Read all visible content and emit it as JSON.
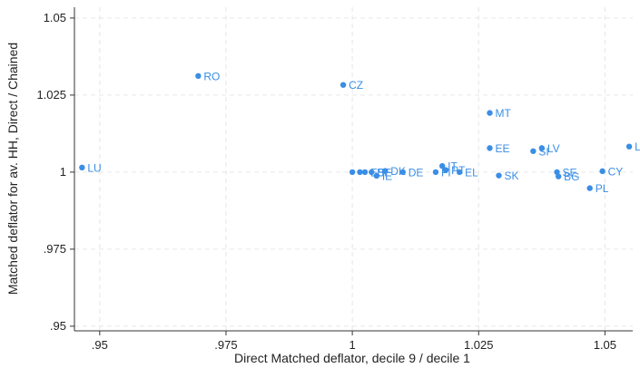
{
  "chart_data": {
    "type": "scatter",
    "xlabel": "Direct Matched deflator, decile 9 / decile 1",
    "ylabel": "Matched deflator for av. HH, Direct / Chained",
    "xlim": [
      0.945,
      1.0555
    ],
    "ylim": [
      0.9485,
      1.0535
    ],
    "xticks": [
      0.95,
      0.975,
      1,
      1.025,
      1.05
    ],
    "xtick_labels": [
      ".95",
      ".975",
      "1",
      "1.025",
      "1.05"
    ],
    "yticks": [
      0.95,
      0.975,
      1,
      1.025,
      1.05
    ],
    "ytick_labels": [
      ".95",
      ".975",
      "1",
      "1.025",
      "1.05"
    ],
    "grid": true,
    "point_color": "#3a8ee6",
    "points": [
      {
        "label": "LU",
        "x": 0.9465,
        "y": 1.0015
      },
      {
        "label": "RO",
        "x": 0.9695,
        "y": 1.0312
      },
      {
        "label": "CZ",
        "x": 0.9982,
        "y": 1.0283
      },
      {
        "label": "",
        "x": 1.0,
        "y": 1.0
      },
      {
        "label": "",
        "x": 1.0015,
        "y": 1.0
      },
      {
        "label": "ES",
        "x": 1.0025,
        "y": 1.0
      },
      {
        "label": "BE",
        "x": 1.0038,
        "y": 1.0
      },
      {
        "label": "IE",
        "x": 1.0048,
        "y": 0.9988
      },
      {
        "label": "DK",
        "x": 1.0065,
        "y": 1.0004
      },
      {
        "label": "DE",
        "x": 1.01,
        "y": 1.0
      },
      {
        "label": "IT",
        "x": 1.0178,
        "y": 1.002
      },
      {
        "label": "PT",
        "x": 1.0185,
        "y": 1.0007
      },
      {
        "label": "FI",
        "x": 1.0165,
        "y": 1.0
      },
      {
        "label": "EL",
        "x": 1.0212,
        "y": 1.0
      },
      {
        "label": "MT",
        "x": 1.0272,
        "y": 1.0192
      },
      {
        "label": "EE",
        "x": 1.0272,
        "y": 1.0078
      },
      {
        "label": "SK",
        "x": 1.029,
        "y": 0.9989
      },
      {
        "label": "SI",
        "x": 1.0358,
        "y": 1.0068
      },
      {
        "label": "LV",
        "x": 1.0375,
        "y": 1.0078
      },
      {
        "label": "SE",
        "x": 1.0405,
        "y": 1.0
      },
      {
        "label": "BG",
        "x": 1.0408,
        "y": 0.9986
      },
      {
        "label": "PL",
        "x": 1.047,
        "y": 0.9948
      },
      {
        "label": "CY",
        "x": 1.0495,
        "y": 1.0003
      },
      {
        "label": "LT",
        "x": 1.0548,
        "y": 1.0083
      }
    ]
  }
}
